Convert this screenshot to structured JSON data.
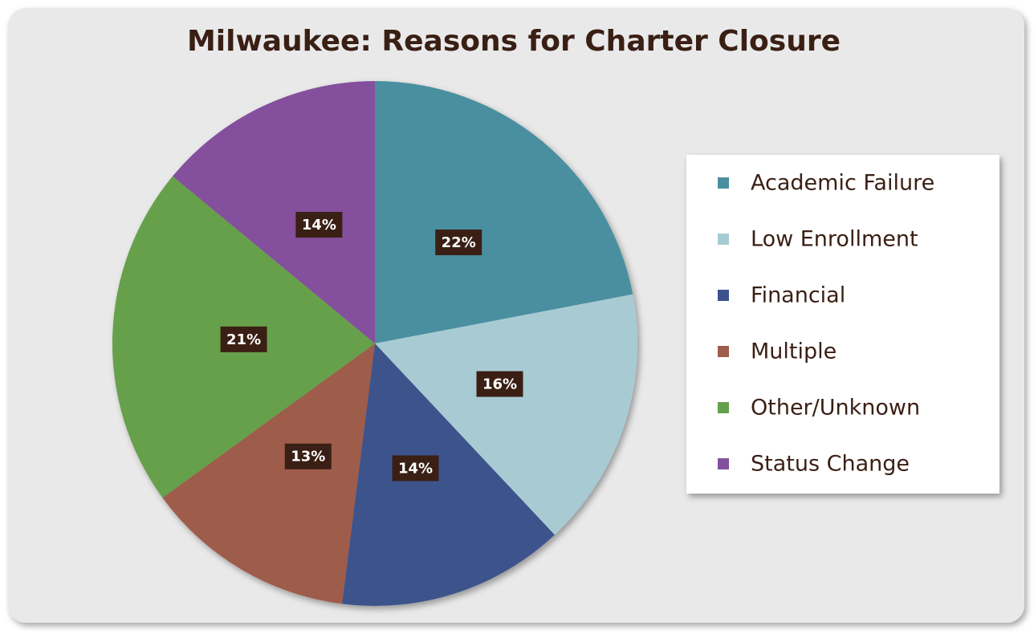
{
  "chart_data": {
    "type": "pie",
    "title": "Milwaukee: Reasons for Charter Closure",
    "categories": [
      "Academic Failure",
      "Low Enrollment",
      "Financial",
      "Multiple",
      "Other/Unknown",
      "Status Change"
    ],
    "values": [
      22,
      16,
      14,
      13,
      21,
      14
    ],
    "value_labels": [
      "22%",
      "16%",
      "14%",
      "13%",
      "21%",
      "14%"
    ],
    "colors": [
      "#4a8fa0",
      "#a8cbd3",
      "#3c528c",
      "#9e5c4c",
      "#66a04c",
      "#84509c"
    ],
    "legend": "right"
  }
}
